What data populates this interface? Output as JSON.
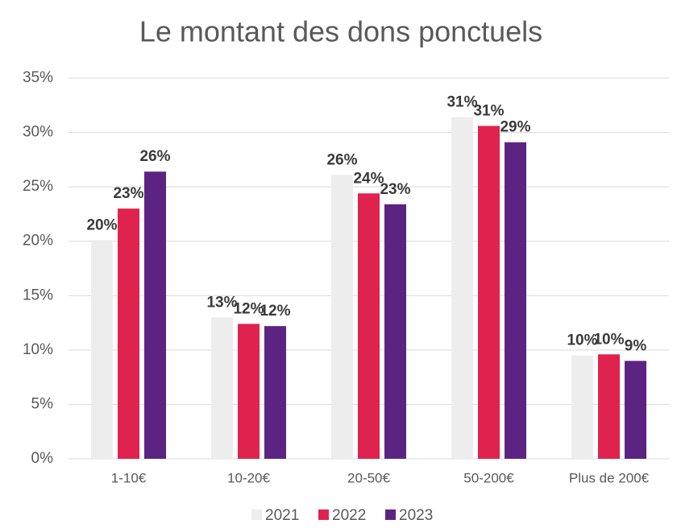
{
  "chart_data": {
    "type": "bar",
    "title": "Le montant des dons ponctuels",
    "categories": [
      "1-10€",
      "10-20€",
      "20-50€",
      "50-200€",
      "Plus de 200€"
    ],
    "series": [
      {
        "name": "2021",
        "color": "#ededed",
        "values": [
          20.1,
          13.0,
          26.1,
          31.4,
          9.5
        ],
        "value_labels": [
          "20%",
          "13%",
          "26%",
          "31%",
          "10%"
        ]
      },
      {
        "name": "2022",
        "color": "#e0234e",
        "values": [
          23.0,
          12.4,
          24.4,
          30.6,
          9.6
        ],
        "value_labels": [
          "23%",
          "12%",
          "24%",
          "31%",
          "10%"
        ]
      },
      {
        "name": "2023",
        "color": "#5c2482",
        "values": [
          26.4,
          12.2,
          23.4,
          29.1,
          9.0
        ],
        "value_labels": [
          "26%",
          "12%",
          "23%",
          "29%",
          "9%"
        ]
      }
    ],
    "ylim": [
      0,
      35
    ],
    "yticks": [
      {
        "value": 0,
        "label": "0%"
      },
      {
        "value": 5,
        "label": "5%"
      },
      {
        "value": 10,
        "label": "10%"
      },
      {
        "value": 15,
        "label": "15%"
      },
      {
        "value": 20,
        "label": "20%"
      },
      {
        "value": 25,
        "label": "25%"
      },
      {
        "value": 30,
        "label": "30%"
      },
      {
        "value": 35,
        "label": "35%"
      }
    ],
    "grid": true,
    "legend": "bottom"
  }
}
